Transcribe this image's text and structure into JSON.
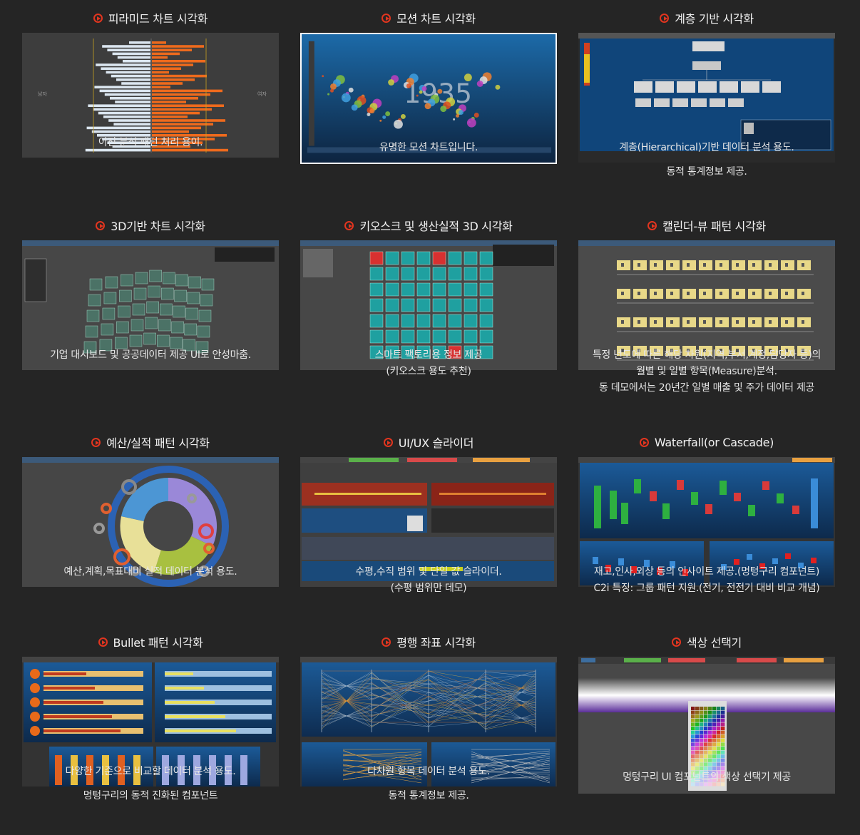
{
  "cards": {
    "pyramid": {
      "title": "피라미드 차트 시각화",
      "lines": [
        "이진 분석 패턴 처리 용이."
      ],
      "thumb_text": [
        "남자",
        "여자"
      ]
    },
    "motion": {
      "title": "모션 차트 시각화",
      "lines": [
        "유명한 모션 차트입니다."
      ],
      "thumb_text": [
        "1935"
      ]
    },
    "hierarchy": {
      "title": "계층 기반 시각화",
      "lines": [
        "계층(Hierarchical)기반 데이터 분석 용도.",
        "동적 통계정보 제공."
      ]
    },
    "threed": {
      "title": "3D기반 차트 시각화",
      "lines": [
        "기업 대시보드 및 공공데이터 제공 UI로 안성마춤."
      ]
    },
    "kiosk": {
      "title": "키오스크 및 생산실적 3D 시각화",
      "lines": [
        "스마트 팩토리용 정보 제공",
        "(키오스크 용도 추천)"
      ]
    },
    "calendar": {
      "title": "캘린더-뷰 패턴 시각화",
      "lines": [
        "특정 년도에 따른 해당 차원(지역,부서,계정,담당자 등)의",
        "월별 및 일별 항목(Measure)분석.",
        "동 데모에서는 20년간 일별 매출 및 주가 데이터 제공"
      ]
    },
    "budget": {
      "title": "예산/실적 패턴 시각화",
      "lines": [
        "예산,계획,목표대비 실적 데이터 분석 용도."
      ]
    },
    "slider": {
      "title": "UI/UX 슬라이더",
      "lines": [
        "수평,수직 범위 및 단일 값 슬라이더.",
        "(수평 범위만 데모)"
      ]
    },
    "waterfall": {
      "title": "Waterfall(or Cascade)",
      "lines": [
        "재고,인사,외상 등의 인사이트 제공.(멍텅구리 컴포넌트)",
        "C2i 특징: 그룹 패턴 지원.(전기, 전전기 대비 비교 개념)"
      ]
    },
    "bullet": {
      "title": "Bullet 패턴 시각화",
      "lines": [
        "다양한 기준으로 비교할 데이터 분석 용도.",
        "멍텅구리의 동적 진화된 컴포넌트"
      ]
    },
    "parallel": {
      "title": "평행 좌표 시각화",
      "lines": [
        "다차원 항목 데이터 분석 용도.",
        "동적 통계정보 제공."
      ]
    },
    "colorpicker": {
      "title": "색상 선택기",
      "lines": [
        "멍텅구리 UI 컴포넌트의 색상 선택기 제공"
      ]
    }
  },
  "colors": {
    "accent": "#e3351f",
    "background": "#252525",
    "orange": "#ee6a1d",
    "blue": "#2b78b8"
  }
}
